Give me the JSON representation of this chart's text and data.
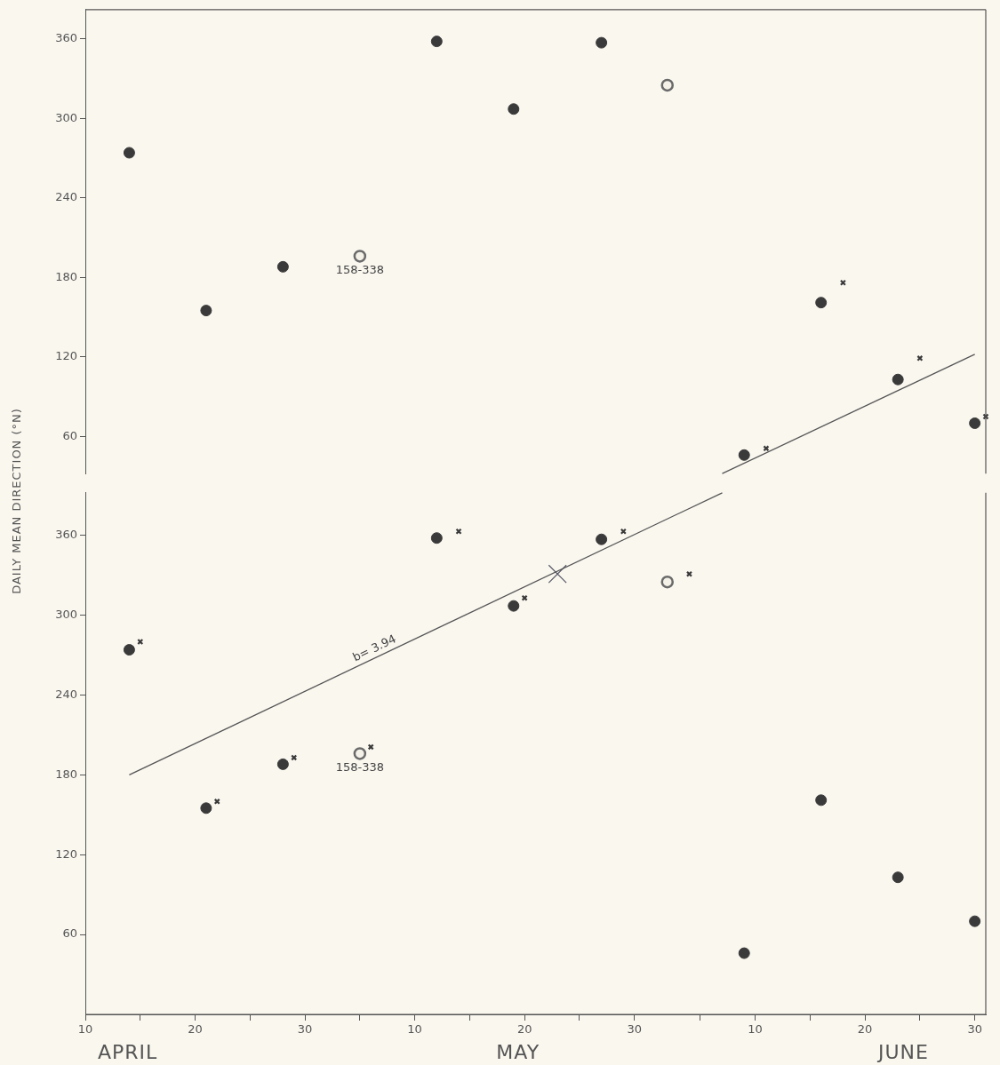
{
  "chart_data": [
    {
      "type": "scatter",
      "xlim": [
        "--04-10",
        "--07-01"
      ],
      "ylim": [
        32,
        382
      ],
      "yticks": [
        60,
        120,
        180,
        240,
        300,
        360
      ],
      "tick_labels": "y",
      "grid": false,
      "legend": false,
      "series": [
        {
          "marker": "circle",
          "color": "#3a3a3a",
          "x": [
            "--04-14",
            "--04-21",
            "--04-28",
            "--05-12",
            "--05-19",
            "--05-27",
            "--06-09",
            "--06-16",
            "--06-23",
            "--06-30"
          ],
          "values": [
            274,
            155,
            188,
            358,
            307,
            357,
            46,
            161,
            103,
            70
          ]
        },
        {
          "marker": "circle",
          "color": "#6a6a6a",
          "x": [
            "--05-05",
            "--06-02"
          ],
          "values": [
            196,
            325
          ],
          "value_labels": [
            "158-338",
            null
          ]
        },
        {
          "marker": "cross",
          "color": "#3a3a3a",
          "x": [
            "--06-11",
            "--06-18",
            "--06-25",
            "--07-01"
          ],
          "values": [
            51,
            176,
            119,
            75
          ]
        },
        {
          "type": "line",
          "marker": "none",
          "line_style": "solid",
          "color": "#555555",
          "x": [
            "--06-07",
            "--06-30"
          ],
          "values": [
            32,
            122
          ]
        }
      ]
    },
    {
      "type": "scatter",
      "ylabel": "DAILY MEAN DIRECTION (°N)",
      "xlim": [
        "--04-10",
        "--07-01"
      ],
      "ylim": [
        0,
        392
      ],
      "xticks": [
        {
          "value": "--04-10",
          "label": "10"
        },
        {
          "value": "--04-20",
          "label": "20"
        },
        {
          "value": "--04-30",
          "label": "30"
        },
        {
          "value": "--05-10",
          "label": "10"
        },
        {
          "value": "--05-20",
          "label": "20"
        },
        {
          "value": "--05-30",
          "label": "30"
        },
        {
          "value": "--06-10",
          "label": "10"
        },
        {
          "value": "--06-20",
          "label": "20"
        },
        {
          "value": "--06-30",
          "label": "30"
        },
        {
          "value": "--04-15",
          "label": null
        },
        {
          "value": "--04-25",
          "label": null
        },
        {
          "value": "--05-05",
          "label": null
        },
        {
          "value": "--05-15",
          "label": null
        },
        {
          "value": "--05-25",
          "label": null
        },
        {
          "value": "--06-05",
          "label": null
        },
        {
          "value": "--06-15",
          "label": null
        },
        {
          "value": "--06-25",
          "label": null
        }
      ],
      "yticks": [
        60,
        120,
        180,
        240,
        300,
        360
      ],
      "grid": false,
      "legend": false,
      "series": [
        {
          "marker": "circle",
          "color": "#3a3a3a",
          "x": [
            "--04-14",
            "--04-21",
            "--04-28",
            "--05-12",
            "--05-19",
            "--05-27",
            "--06-09",
            "--06-16",
            "--06-23",
            "--06-30"
          ],
          "values": [
            274,
            155,
            188,
            358,
            307,
            357,
            46,
            161,
            103,
            70
          ]
        },
        {
          "marker": "circle",
          "color": "#6a6a6a",
          "x": [
            "--05-05",
            "--06-02"
          ],
          "values": [
            196,
            325
          ],
          "value_labels": [
            "158-338",
            null
          ]
        },
        {
          "marker": "cross",
          "color": "#3a3a3a",
          "x": [
            "--04-15",
            "--04-22",
            "--04-29",
            "--05-06",
            "--05-14",
            "--05-20",
            "--05-29",
            "--06-04"
          ],
          "values": [
            280,
            160,
            193,
            201,
            363,
            313,
            363,
            331
          ]
        },
        {
          "type": "line",
          "marker": "none",
          "line_style": "solid",
          "color": "#555555",
          "x": [
            "--04-14",
            "--06-07"
          ],
          "values": [
            180,
            392
          ]
        },
        {
          "marker": "cross",
          "color": "#555566",
          "x": [
            "--05-23"
          ],
          "values": [
            331
          ]
        }
      ],
      "annotations": [
        "b= 3.94",
        "APRIL",
        "MAY",
        "JUNE"
      ]
    }
  ]
}
